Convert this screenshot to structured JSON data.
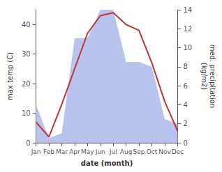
{
  "chart_data": {
    "type": "line",
    "xlabel": "date (month)",
    "ylabel": "max temp (C)",
    "y2label": "med. precipitation\n(kg/m2)",
    "categories": [
      "Jan",
      "Feb",
      "Mar",
      "Apr",
      "May",
      "Jun",
      "Jul",
      "Aug",
      "Sep",
      "Oct",
      "Nov",
      "Dec"
    ],
    "series": [
      {
        "type": "area",
        "color": "#b8c4ee",
        "axis": "y2",
        "values": [
          4,
          0.5,
          1.0,
          11,
          11,
          14,
          14,
          8.5,
          8.5,
          8,
          2.5,
          2
        ]
      },
      {
        "type": "line",
        "color": "#c03535",
        "values": [
          7,
          2,
          13,
          25,
          37,
          43,
          44,
          40,
          38,
          27,
          14,
          4
        ]
      }
    ],
    "ylim": [
      0,
      45
    ],
    "yticks": [
      0,
      10,
      20,
      30,
      40
    ],
    "y2lim": [
      0,
      14
    ],
    "y2ticks": [
      0,
      2,
      4,
      6,
      8,
      10,
      12,
      14
    ],
    "grid": false
  }
}
